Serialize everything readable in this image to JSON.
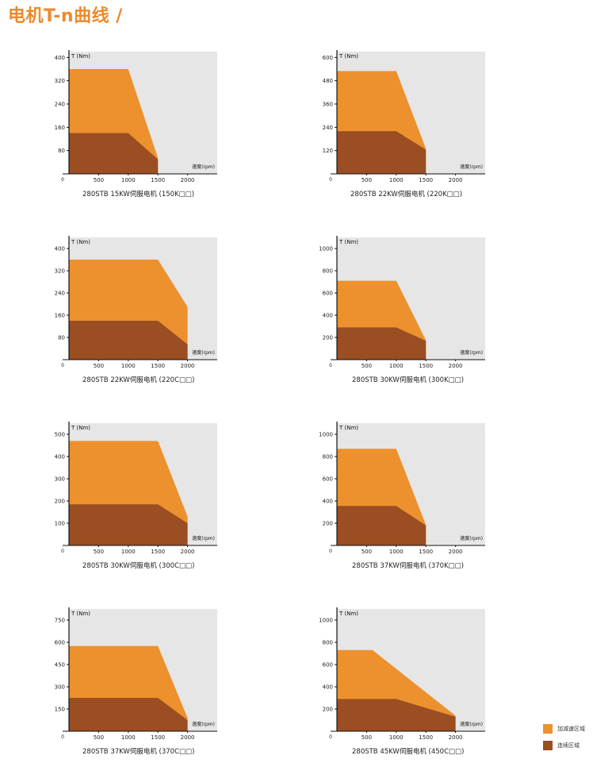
{
  "page": {
    "title": "电机T-n曲线 /"
  },
  "colors": {
    "accel": "#ec912d",
    "continuous": "#9a4e22",
    "plot_bg": "#e6e6e6",
    "axis": "#111111"
  },
  "legend": {
    "accel_label": "加减速区域",
    "continuous_label": "连续区域"
  },
  "chart_data": [
    {
      "type": "area",
      "title": "280STB 15KW伺服电机 (150K□□)",
      "xlabel": "速度(rpm)",
      "ylabel": "T (Nm)",
      "xticks": [
        "500",
        "1000",
        "1500",
        "2000"
      ],
      "yticks": [
        80,
        160,
        240,
        320,
        400
      ],
      "xlim": [
        0,
        2500
      ],
      "ylim": [
        0,
        420
      ],
      "series": [
        {
          "name": "加减速区域",
          "x": [
            0,
            1000,
            1500,
            1500
          ],
          "y": [
            360,
            360,
            55,
            0
          ]
        },
        {
          "name": "连续区域",
          "x": [
            0,
            1000,
            1500,
            1500
          ],
          "y": [
            140,
            140,
            50,
            0
          ]
        }
      ]
    },
    {
      "type": "area",
      "title": "280STB 22KW伺服电机 (220K□□)",
      "xlabel": "速度(rpm)",
      "ylabel": "T (Nm)",
      "xticks": [
        "500",
        "1000",
        "1500",
        "2000"
      ],
      "yticks": [
        120,
        240,
        360,
        480,
        600
      ],
      "xlim": [
        0,
        2500
      ],
      "ylim": [
        0,
        630
      ],
      "series": [
        {
          "name": "加减速区域",
          "x": [
            0,
            1000,
            1500,
            1500
          ],
          "y": [
            530,
            530,
            130,
            0
          ]
        },
        {
          "name": "连续区域",
          "x": [
            0,
            1000,
            1500,
            1500
          ],
          "y": [
            220,
            220,
            125,
            0
          ]
        }
      ]
    },
    {
      "type": "area",
      "title": "280STB 22KW伺服电机 (220C□□)",
      "xlabel": "速度(rpm)",
      "ylabel": "T (Nm)",
      "xticks": [
        "500",
        "1000",
        "1500",
        "2000"
      ],
      "yticks": [
        80,
        160,
        240,
        320,
        400
      ],
      "xlim": [
        0,
        2500
      ],
      "ylim": [
        0,
        440
      ],
      "series": [
        {
          "name": "加减速区域",
          "x": [
            0,
            1500,
            2000,
            2000
          ],
          "y": [
            360,
            360,
            190,
            0
          ]
        },
        {
          "name": "连续区域",
          "x": [
            0,
            1500,
            2000,
            2000
          ],
          "y": [
            140,
            140,
            55,
            0
          ]
        }
      ]
    },
    {
      "type": "area",
      "title": "280STB 30KW伺服电机 (300K□□)",
      "xlabel": "速度(rpm)",
      "ylabel": "T (Nm)",
      "xticks": [
        "500",
        "1000",
        "1500",
        "2000"
      ],
      "yticks": [
        200,
        400,
        600,
        800,
        1000
      ],
      "xlim": [
        0,
        2500
      ],
      "ylim": [
        0,
        1100
      ],
      "series": [
        {
          "name": "加减速区域",
          "x": [
            0,
            1000,
            1500,
            1500
          ],
          "y": [
            710,
            710,
            175,
            0
          ]
        },
        {
          "name": "连续区域",
          "x": [
            0,
            1000,
            1500,
            1500
          ],
          "y": [
            290,
            290,
            170,
            0
          ]
        }
      ]
    },
    {
      "type": "area",
      "title": "280STB 30KW伺服电机 (300C□□)",
      "xlabel": "速度(rpm)",
      "ylabel": "T (Nm)",
      "xticks": [
        "500",
        "1000",
        "1500",
        "2000"
      ],
      "yticks": [
        100,
        200,
        300,
        400,
        500
      ],
      "xlim": [
        0,
        2500
      ],
      "ylim": [
        0,
        550
      ],
      "series": [
        {
          "name": "加减速区域",
          "x": [
            0,
            1500,
            2000,
            2000
          ],
          "y": [
            470,
            470,
            130,
            0
          ]
        },
        {
          "name": "连续区域",
          "x": [
            0,
            1500,
            2000,
            2000
          ],
          "y": [
            185,
            185,
            100,
            0
          ]
        }
      ]
    },
    {
      "type": "area",
      "title": "280STB 37KW伺服电机 (370K□□)",
      "xlabel": "速度(rpm)",
      "ylabel": "T (Nm)",
      "xticks": [
        "500",
        "1000",
        "1500",
        "2000"
      ],
      "yticks": [
        200,
        400,
        600,
        800,
        1000
      ],
      "xlim": [
        0,
        2500
      ],
      "ylim": [
        0,
        1100
      ],
      "series": [
        {
          "name": "加减速区域",
          "x": [
            0,
            1000,
            1500,
            1500
          ],
          "y": [
            870,
            870,
            185,
            0
          ]
        },
        {
          "name": "连续区域",
          "x": [
            0,
            1000,
            1500,
            1500
          ],
          "y": [
            355,
            355,
            180,
            0
          ]
        }
      ]
    },
    {
      "type": "area",
      "title": "280STB 37KW伺服电机 (370C□□)",
      "xlabel": "速度(rpm)",
      "ylabel": "T (Nm)",
      "xticks": [
        "500",
        "1000",
        "1500",
        "2000"
      ],
      "yticks": [
        150,
        300,
        450,
        600,
        750
      ],
      "xlim": [
        0,
        2500
      ],
      "ylim": [
        0,
        825
      ],
      "series": [
        {
          "name": "加减速区域",
          "x": [
            0,
            1500,
            2000,
            2000
          ],
          "y": [
            575,
            575,
            90,
            0
          ]
        },
        {
          "name": "连续区域",
          "x": [
            0,
            1500,
            2000,
            2000
          ],
          "y": [
            225,
            225,
            75,
            0
          ]
        }
      ]
    },
    {
      "type": "area",
      "title": "280STB 45KW伺服电机 (450C□□)",
      "xlabel": "速度(rpm)",
      "ylabel": "T (Nm)",
      "xticks": [
        "500",
        "1000",
        "1500",
        "2000"
      ],
      "yticks": [
        200,
        400,
        600,
        800,
        1000
      ],
      "xlim": [
        0,
        2500
      ],
      "ylim": [
        0,
        1100
      ],
      "series": [
        {
          "name": "加减速区域",
          "x": [
            0,
            600,
            2000,
            2000
          ],
          "y": [
            730,
            730,
            140,
            0
          ]
        },
        {
          "name": "连续区域",
          "x": [
            0,
            1000,
            2000,
            2000
          ],
          "y": [
            290,
            290,
            130,
            0
          ]
        }
      ]
    }
  ]
}
